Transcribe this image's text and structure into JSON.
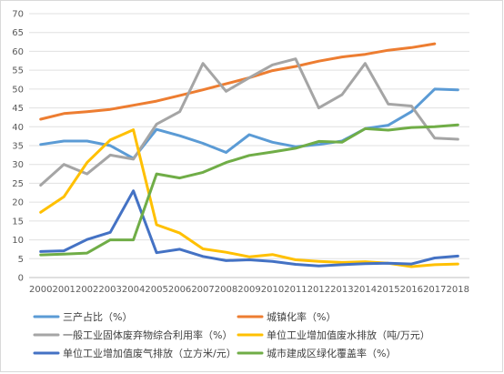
{
  "chart_data": {
    "type": "line",
    "title": "",
    "xlabel": "",
    "ylabel": "",
    "ylim": [
      0,
      70
    ],
    "yticks": [
      0,
      5,
      10,
      15,
      20,
      25,
      30,
      35,
      40,
      45,
      50,
      55,
      60,
      65,
      70
    ],
    "categories": [
      "2000",
      "2001",
      "2002",
      "2003",
      "2004",
      "2005",
      "2006",
      "2007",
      "2008",
      "2009",
      "2010",
      "2011",
      "2012",
      "2013",
      "2014",
      "2015",
      "2016",
      "2017",
      "2018"
    ],
    "grid": "horizontal",
    "legend_position": "bottom",
    "series": [
      {
        "name": "三产占比（%）",
        "color": "#5B9BD5",
        "values": [
          35.3,
          36.2,
          36.2,
          35.0,
          31.6,
          39.3,
          37.6,
          35.6,
          33.2,
          37.9,
          35.9,
          34.7,
          35.3,
          36.2,
          39.5,
          40.4,
          44.0,
          50.0,
          49.8
        ]
      },
      {
        "name": "城镇化率（%）",
        "color": "#ED7D31",
        "values": [
          42.0,
          43.5,
          44.0,
          44.6,
          45.7,
          46.8,
          48.3,
          49.8,
          51.4,
          53.0,
          54.9,
          56.0,
          57.4,
          58.5,
          59.2,
          60.3,
          61.0,
          62.0,
          null
        ]
      },
      {
        "name": "一般工业固体废弃物综合利用率（%）",
        "color": "#A5A5A5",
        "values": [
          24.5,
          30.0,
          27.5,
          32.5,
          31.4,
          40.7,
          44.0,
          56.8,
          49.4,
          53.0,
          56.4,
          58.0,
          45.0,
          48.5,
          56.8,
          46.0,
          45.5,
          37.0,
          36.7
        ]
      },
      {
        "name": "单位工业增加值废水排放（吨/万元）",
        "color": "#FFC000",
        "values": [
          17.3,
          21.4,
          30.5,
          36.5,
          39.2,
          14.0,
          11.8,
          7.6,
          6.7,
          5.5,
          6.1,
          4.7,
          4.3,
          4.0,
          4.2,
          3.8,
          2.9,
          3.4,
          3.6
        ]
      },
      {
        "name": "单位工业增加值废气排放（立方米/元）",
        "color": "#4472C4",
        "values": [
          6.9,
          7.1,
          10.1,
          12.0,
          23.0,
          6.6,
          7.5,
          5.6,
          4.5,
          4.7,
          4.3,
          3.5,
          3.1,
          3.4,
          3.7,
          3.8,
          3.6,
          5.2,
          5.7
        ]
      },
      {
        "name": "城市建成区绿化覆盖率（%）",
        "color": "#70AD47",
        "values": [
          6.0,
          6.2,
          6.5,
          10.0,
          10.0,
          27.5,
          26.4,
          27.9,
          30.5,
          32.4,
          33.3,
          34.3,
          36.1,
          35.9,
          39.5,
          39.1,
          39.8,
          40.0,
          40.5
        ]
      }
    ]
  }
}
